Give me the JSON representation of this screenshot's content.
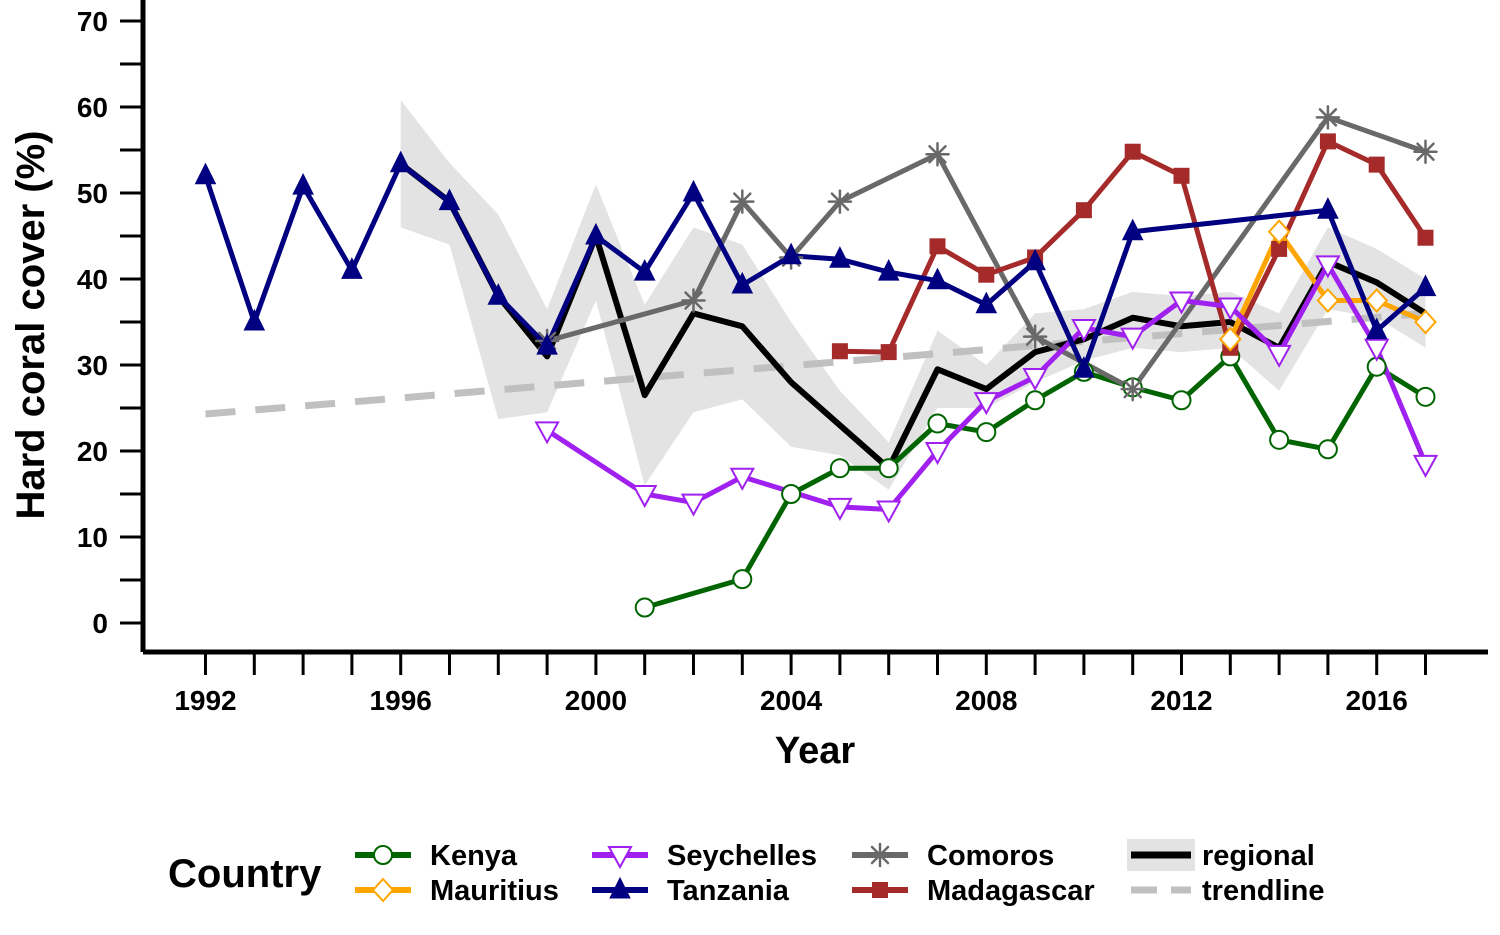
{
  "chart_data": {
    "type": "line",
    "title": "",
    "xlabel": "Year",
    "ylabel": "Hard coral cover (%)",
    "xlim": [
      1992,
      2017
    ],
    "ylim": [
      0,
      70
    ],
    "x_ticks": [
      1992,
      1996,
      2000,
      2004,
      2008,
      2012,
      2016
    ],
    "y_ticks": [
      0,
      10,
      20,
      30,
      40,
      50,
      60,
      70
    ],
    "grid": false,
    "legend": {
      "title": "Country",
      "placement": "bottom",
      "entries": [
        "Kenya",
        "Mauritius",
        "Seychelles",
        "Tanzania",
        "Comoros",
        "Madagascar",
        "regional",
        "trendline"
      ]
    },
    "series": [
      {
        "name": "Kenya",
        "color": "#006400",
        "marker": "circle",
        "x": [
          2001,
          2003,
          2004,
          2005,
          2006,
          2007,
          2008,
          2009,
          2010,
          2011,
          2012,
          2013,
          2014,
          2015,
          2016,
          2017
        ],
        "values": [
          1.8,
          5.1,
          15.0,
          18.0,
          18.0,
          23.2,
          22.2,
          25.9,
          29.2,
          27.4,
          25.9,
          31.0,
          21.3,
          20.2,
          29.8,
          26.3
        ]
      },
      {
        "name": "Mauritius",
        "color": "#FFA500",
        "marker": "diamond",
        "x": [
          2013,
          2014,
          2015,
          2016,
          2017
        ],
        "values": [
          33.0,
          45.5,
          37.5,
          37.5,
          35.0
        ]
      },
      {
        "name": "Seychelles",
        "color": "#A020F0",
        "marker": "triangle-down",
        "x": [
          1999,
          2001,
          2002,
          2003,
          2005,
          2006,
          2007,
          2008,
          2009,
          2010,
          2011,
          2012,
          2013,
          2014,
          2015,
          2016,
          2017
        ],
        "values": [
          22.4,
          15.0,
          14.0,
          17.0,
          13.5,
          13.2,
          20.0,
          25.8,
          28.6,
          34.3,
          33.3,
          37.5,
          36.8,
          31.3,
          41.7,
          32.0,
          18.5
        ]
      },
      {
        "name": "Tanzania",
        "color": "#000080",
        "marker": "triangle-up",
        "x": [
          1992,
          1993,
          1994,
          1995,
          1996,
          1997,
          1998,
          1999,
          2000,
          2001,
          2002,
          2003,
          2004,
          2005,
          2006,
          2007,
          2008,
          2009,
          2010,
          2011,
          2015,
          2016,
          2017
        ],
        "values": [
          52.0,
          35.0,
          50.8,
          41.0,
          53.4,
          49.0,
          38.0,
          32.2,
          45.0,
          40.8,
          50.0,
          39.3,
          42.7,
          42.3,
          40.8,
          39.8,
          37.0,
          42.0,
          29.5,
          45.5,
          48.0,
          34.0,
          39.0
        ]
      },
      {
        "name": "Comoros",
        "color": "#696969",
        "marker": "asterisk",
        "x": [
          1999,
          2002,
          2003,
          2004,
          2005,
          2007,
          2009,
          2011,
          2015,
          2017
        ],
        "values": [
          32.8,
          37.5,
          49.0,
          42.5,
          49.0,
          54.5,
          33.3,
          27.2,
          58.8,
          54.8
        ]
      },
      {
        "name": "Madagascar",
        "color": "#A52A2A",
        "marker": "square",
        "x": [
          2005,
          2006,
          2007,
          2008,
          2009,
          2010,
          2011,
          2012,
          2013,
          2014,
          2015,
          2016,
          2017
        ],
        "values": [
          31.6,
          31.5,
          43.8,
          40.5,
          42.5,
          48.0,
          54.8,
          52.0,
          32.0,
          43.5,
          56.0,
          53.3,
          44.8
        ]
      },
      {
        "name": "regional",
        "color": "#000000",
        "marker": "none",
        "x": [
          1996,
          1997,
          1998,
          1999,
          2000,
          2001,
          2002,
          2003,
          2004,
          2005,
          2006,
          2007,
          2008,
          2009,
          2010,
          2011,
          2012,
          2013,
          2014,
          2015,
          2016,
          2017
        ],
        "values": [
          53.4,
          49.0,
          38.0,
          31.0,
          45.0,
          26.5,
          36.0,
          34.5,
          28.0,
          23.0,
          18.0,
          29.5,
          27.2,
          31.5,
          33.0,
          35.5,
          34.5,
          35.0,
          32.0,
          42.0,
          39.6,
          36.0
        ],
        "band_lower": [
          46.0,
          44.0,
          23.7,
          24.5,
          37.5,
          16.0,
          24.5,
          26.0,
          20.5,
          19.5,
          15.5,
          25.0,
          25.0,
          28.0,
          30.5,
          32.0,
          31.5,
          32.0,
          27.0,
          36.5,
          35.5,
          32.0
        ],
        "band_upper": [
          60.8,
          53.5,
          47.5,
          36.5,
          51.0,
          37.0,
          46.0,
          44.0,
          35.0,
          27.0,
          21.0,
          34.0,
          30.0,
          36.0,
          36.5,
          38.5,
          38.0,
          38.5,
          36.0,
          46.0,
          43.5,
          40.0
        ]
      },
      {
        "name": "trendline",
        "color": "#C0C0C0",
        "marker": "none",
        "x": [
          1992,
          2017
        ],
        "values": [
          24.3,
          36.0
        ]
      }
    ]
  },
  "legend_title": "Country",
  "axis": {
    "xlabel": "Year",
    "ylabel": "Hard coral cover (%)"
  }
}
